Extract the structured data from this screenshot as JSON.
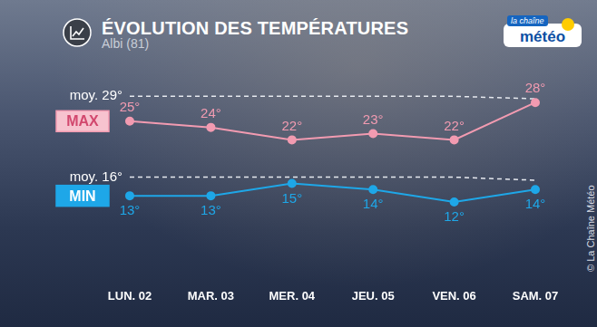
{
  "chart_data": {
    "type": "line",
    "title": "ÉVOLUTION DES TEMPÉRATURES",
    "subtitle": "Albi (81)",
    "annotations": [
      "la chaîne",
      "météo",
      "© La Chaîne Météo"
    ],
    "categories": [
      "LUN. 02",
      "MAR. 03",
      "MER. 04",
      "JEU. 05",
      "VEN. 06",
      "SAM. 07"
    ],
    "series": [
      {
        "name": "MAX",
        "color": "#f29bb1",
        "marker": "circle",
        "line_style": "solid",
        "values": [
          25,
          24,
          22,
          23,
          22,
          28
        ],
        "value_labels": [
          "25°",
          "24°",
          "22°",
          "23°",
          "22°",
          "28°"
        ]
      },
      {
        "name": "MIN",
        "color": "#1ea7e8",
        "marker": "circle",
        "line_style": "solid",
        "values": [
          13,
          13,
          15,
          14,
          12,
          14
        ],
        "value_labels": [
          "13°",
          "13°",
          "15°",
          "14°",
          "12°",
          "14°"
        ]
      },
      {
        "name": "moy. 29°",
        "color": "#e6e9ef",
        "marker": "none",
        "line_style": "dashed",
        "values": [
          29,
          29,
          29,
          29,
          29,
          28.6
        ]
      },
      {
        "name": "moy. 16°",
        "color": "#e6e9ef",
        "marker": "none",
        "line_style": "dashed",
        "values": [
          16,
          16,
          16,
          16,
          16,
          15.5
        ]
      }
    ],
    "ylim": [
      0,
      34
    ],
    "grid": false,
    "data_labels": true,
    "tick_labels": "x"
  }
}
